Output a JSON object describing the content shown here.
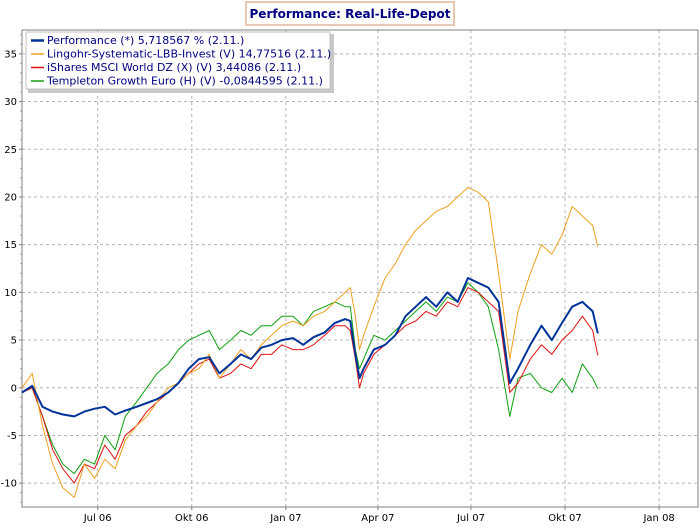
{
  "chart_data": {
    "type": "line",
    "title": "Performance: Real-Life-Depot",
    "xlabel": "",
    "ylabel": "",
    "ylim": [
      -12.5,
      37.5
    ],
    "yticks": [
      -10,
      -5,
      0,
      5,
      10,
      15,
      20,
      25,
      30,
      35
    ],
    "xticks": [
      {
        "label": "Jul 06",
        "x": "2006-07-01"
      },
      {
        "label": "Okt 06",
        "x": "2006-10-01"
      },
      {
        "label": "Jan 07",
        "x": "2007-01-01"
      },
      {
        "label": "Apr 07",
        "x": "2007-04-01"
      },
      {
        "label": "Jul 07",
        "x": "2007-07-01"
      },
      {
        "label": "Okt 07",
        "x": "2007-10-01"
      },
      {
        "label": "Jan 08",
        "x": "2008-01-01"
      }
    ],
    "xlim": [
      "2006-04-18",
      "2008-02-08"
    ],
    "grid": true,
    "legend_position": "top-left",
    "series": [
      {
        "name": "Performance (*) 5,718567 % (2.11.)",
        "color": "#003399",
        "x": [
          "2006-04-18",
          "2006-04-28",
          "2006-05-08",
          "2006-05-18",
          "2006-05-28",
          "2006-06-08",
          "2006-06-18",
          "2006-06-28",
          "2006-07-08",
          "2006-07-18",
          "2006-07-28",
          "2006-08-08",
          "2006-08-18",
          "2006-08-28",
          "2006-09-08",
          "2006-09-18",
          "2006-09-28",
          "2006-10-08",
          "2006-10-18",
          "2006-10-28",
          "2006-11-08",
          "2006-11-18",
          "2006-11-28",
          "2006-12-08",
          "2006-12-18",
          "2006-12-28",
          "2007-01-08",
          "2007-01-18",
          "2007-01-28",
          "2007-02-08",
          "2007-02-18",
          "2007-02-28",
          "2007-03-05",
          "2007-03-10",
          "2007-03-14",
          "2007-03-18",
          "2007-03-28",
          "2007-04-08",
          "2007-04-18",
          "2007-04-28",
          "2007-05-08",
          "2007-05-18",
          "2007-05-28",
          "2007-06-08",
          "2007-06-18",
          "2007-06-28",
          "2007-07-08",
          "2007-07-18",
          "2007-07-28",
          "2007-08-08",
          "2007-08-16",
          "2007-08-28",
          "2007-09-08",
          "2007-09-18",
          "2007-09-28",
          "2007-10-08",
          "2007-10-18",
          "2007-10-28",
          "2007-11-02"
        ],
        "values": [
          -0.5,
          0.2,
          -2.0,
          -2.5,
          -2.8,
          -3.0,
          -2.5,
          -2.2,
          -2.0,
          -2.8,
          -2.4,
          -2.0,
          -1.6,
          -1.2,
          -0.5,
          0.5,
          2.0,
          3.0,
          3.2,
          1.5,
          2.5,
          3.5,
          3.0,
          4.2,
          4.5,
          5.0,
          5.2,
          4.5,
          5.3,
          5.8,
          6.8,
          7.2,
          7.0,
          3.5,
          1.0,
          2.0,
          4.0,
          4.5,
          5.5,
          7.5,
          8.5,
          9.5,
          8.5,
          10.0,
          9.0,
          11.5,
          11.0,
          10.5,
          9.0,
          0.5,
          2.0,
          4.5,
          6.5,
          5.0,
          6.8,
          8.5,
          9.0,
          8.0,
          5.7
        ]
      },
      {
        "name": "Lingohr-Systematic-LBB-Invest (V) 14,77516 (2.11.)",
        "color": "#f0a020",
        "x": [
          "2006-04-18",
          "2006-04-28",
          "2006-05-08",
          "2006-05-18",
          "2006-05-28",
          "2006-06-08",
          "2006-06-18",
          "2006-06-28",
          "2006-07-08",
          "2006-07-18",
          "2006-07-28",
          "2006-08-08",
          "2006-08-18",
          "2006-08-28",
          "2006-09-08",
          "2006-09-18",
          "2006-09-28",
          "2006-10-08",
          "2006-10-18",
          "2006-10-28",
          "2006-11-08",
          "2006-11-18",
          "2006-11-28",
          "2006-12-08",
          "2006-12-18",
          "2006-12-28",
          "2007-01-08",
          "2007-01-18",
          "2007-01-28",
          "2007-02-08",
          "2007-02-18",
          "2007-02-28",
          "2007-03-05",
          "2007-03-10",
          "2007-03-14",
          "2007-03-18",
          "2007-03-28",
          "2007-04-08",
          "2007-04-18",
          "2007-04-28",
          "2007-05-08",
          "2007-05-18",
          "2007-05-28",
          "2007-06-08",
          "2007-06-18",
          "2007-06-28",
          "2007-07-08",
          "2007-07-18",
          "2007-07-28",
          "2007-08-08",
          "2007-08-16",
          "2007-08-28",
          "2007-09-08",
          "2007-09-18",
          "2007-09-28",
          "2007-10-08",
          "2007-10-18",
          "2007-10-28",
          "2007-11-02"
        ],
        "values": [
          0.0,
          1.5,
          -4.0,
          -8.0,
          -10.5,
          -11.5,
          -8.0,
          -9.5,
          -7.5,
          -8.5,
          -5.5,
          -4.0,
          -3.0,
          -1.5,
          0.0,
          0.5,
          1.5,
          2.0,
          3.5,
          1.0,
          2.5,
          4.0,
          3.0,
          4.5,
          5.5,
          6.5,
          7.0,
          6.5,
          7.5,
          8.0,
          9.0,
          10.0,
          10.5,
          7.5,
          4.0,
          5.5,
          8.5,
          11.5,
          13.0,
          15.0,
          16.5,
          17.5,
          18.5,
          19.0,
          20.0,
          21.0,
          20.5,
          19.5,
          12.0,
          3.0,
          8.0,
          12.0,
          15.0,
          14.0,
          16.0,
          19.0,
          18.0,
          17.0,
          14.8
        ]
      },
      {
        "name": "iShares MSCI World DZ (X) (V) 3,44086 (2.11.)",
        "color": "#e01010",
        "x": [
          "2006-04-18",
          "2006-04-28",
          "2006-05-08",
          "2006-05-18",
          "2006-05-28",
          "2006-06-08",
          "2006-06-18",
          "2006-06-28",
          "2006-07-08",
          "2006-07-18",
          "2006-07-28",
          "2006-08-08",
          "2006-08-18",
          "2006-08-28",
          "2006-09-08",
          "2006-09-18",
          "2006-09-28",
          "2006-10-08",
          "2006-10-18",
          "2006-10-28",
          "2006-11-08",
          "2006-11-18",
          "2006-11-28",
          "2006-12-08",
          "2006-12-18",
          "2006-12-28",
          "2007-01-08",
          "2007-01-18",
          "2007-01-28",
          "2007-02-08",
          "2007-02-18",
          "2007-02-28",
          "2007-03-05",
          "2007-03-10",
          "2007-03-14",
          "2007-03-18",
          "2007-03-28",
          "2007-04-08",
          "2007-04-18",
          "2007-04-28",
          "2007-05-08",
          "2007-05-18",
          "2007-05-28",
          "2007-06-08",
          "2007-06-18",
          "2007-06-28",
          "2007-07-08",
          "2007-07-18",
          "2007-07-28",
          "2007-08-08",
          "2007-08-16",
          "2007-08-28",
          "2007-09-08",
          "2007-09-18",
          "2007-09-28",
          "2007-10-08",
          "2007-10-18",
          "2007-10-28",
          "2007-11-02"
        ],
        "values": [
          -0.5,
          0.0,
          -3.0,
          -6.5,
          -8.5,
          -10.0,
          -8.0,
          -8.5,
          -6.0,
          -7.5,
          -5.0,
          -4.0,
          -2.5,
          -1.5,
          -0.5,
          0.5,
          1.5,
          2.5,
          3.0,
          1.0,
          1.5,
          2.5,
          2.0,
          3.5,
          3.5,
          4.5,
          4.0,
          4.0,
          4.5,
          5.5,
          6.5,
          6.5,
          6.0,
          3.0,
          0.0,
          1.5,
          3.5,
          4.5,
          5.5,
          6.5,
          7.0,
          8.0,
          7.5,
          9.0,
          8.5,
          10.5,
          10.0,
          9.0,
          8.0,
          -0.5,
          0.5,
          3.0,
          4.5,
          3.5,
          5.0,
          6.0,
          7.5,
          6.0,
          3.4
        ]
      },
      {
        "name": "Templeton Growth Euro (H) (V) -0,0844595 (2.11.)",
        "color": "#10a010",
        "x": [
          "2006-04-18",
          "2006-04-28",
          "2006-05-08",
          "2006-05-18",
          "2006-05-28",
          "2006-06-08",
          "2006-06-18",
          "2006-06-28",
          "2006-07-08",
          "2006-07-18",
          "2006-07-28",
          "2006-08-08",
          "2006-08-18",
          "2006-08-28",
          "2006-09-08",
          "2006-09-18",
          "2006-09-28",
          "2006-10-08",
          "2006-10-18",
          "2006-10-28",
          "2006-11-08",
          "2006-11-18",
          "2006-11-28",
          "2006-12-08",
          "2006-12-18",
          "2006-12-28",
          "2007-01-08",
          "2007-01-18",
          "2007-01-28",
          "2007-02-08",
          "2007-02-18",
          "2007-02-28",
          "2007-03-05",
          "2007-03-10",
          "2007-03-14",
          "2007-03-18",
          "2007-03-28",
          "2007-04-08",
          "2007-04-18",
          "2007-04-28",
          "2007-05-08",
          "2007-05-18",
          "2007-05-28",
          "2007-06-08",
          "2007-06-18",
          "2007-06-28",
          "2007-07-08",
          "2007-07-18",
          "2007-07-28",
          "2007-08-08",
          "2007-08-16",
          "2007-08-28",
          "2007-09-08",
          "2007-09-18",
          "2007-09-28",
          "2007-10-08",
          "2007-10-18",
          "2007-10-28",
          "2007-11-02"
        ],
        "values": [
          -0.5,
          0.0,
          -3.0,
          -6.0,
          -8.0,
          -9.0,
          -7.5,
          -8.0,
          -5.0,
          -6.5,
          -3.0,
          -1.5,
          0.0,
          1.5,
          2.5,
          4.0,
          5.0,
          5.5,
          6.0,
          4.0,
          5.0,
          6.0,
          5.5,
          6.5,
          6.5,
          7.5,
          7.5,
          6.5,
          8.0,
          8.5,
          9.0,
          8.5,
          8.5,
          4.0,
          2.0,
          3.0,
          5.5,
          5.0,
          6.0,
          7.0,
          8.0,
          9.0,
          8.0,
          9.5,
          9.0,
          11.0,
          10.0,
          8.5,
          4.0,
          -3.0,
          1.0,
          1.5,
          0.0,
          -0.5,
          1.0,
          -0.5,
          2.5,
          1.0,
          -0.1
        ]
      }
    ]
  }
}
